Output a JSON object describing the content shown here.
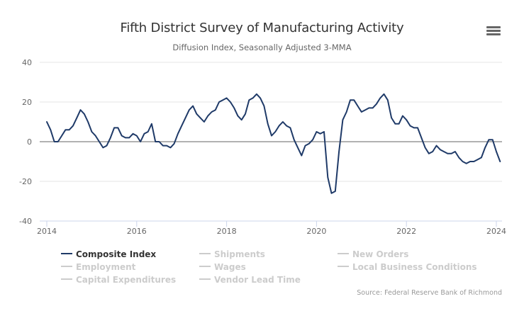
{
  "chart_data": {
    "type": "line",
    "title": "Fifth District Survey of Manufacturing Activity",
    "subtitle": "Diffusion Index, Seasonally Adjusted 3-MMA",
    "xlabel": "",
    "ylabel": "",
    "ylim": [
      -40,
      40
    ],
    "yticks": [
      "40",
      "20",
      "0",
      "-20",
      "-40"
    ],
    "ytick_values": [
      40,
      20,
      0,
      -20,
      -40
    ],
    "xlim": [
      2014.0,
      2024.0
    ],
    "xticks": [
      "2014",
      "2016",
      "2018",
      "2020",
      "2022",
      "2024"
    ],
    "xtick_values": [
      2014,
      2016,
      2018,
      2020,
      2022,
      2024
    ],
    "grid": true,
    "legend_position": "bottom",
    "x_start": "2014-01",
    "x_step": "month",
    "series": [
      {
        "name": "Composite Index",
        "color": "#1f3a68",
        "visible": true,
        "values": [
          10,
          6,
          0,
          0,
          3,
          6,
          6,
          8,
          12,
          16,
          14,
          10,
          5,
          3,
          0,
          -3,
          -2,
          2,
          7,
          7,
          3,
          2,
          2,
          4,
          3,
          0,
          4,
          5,
          9,
          0,
          0,
          -2,
          -2,
          -3,
          -1,
          4,
          8,
          12,
          16,
          18,
          14,
          12,
          10,
          13,
          15,
          16,
          20,
          21,
          22,
          20,
          17,
          13,
          11,
          14,
          21,
          22,
          24,
          22,
          18,
          9,
          3,
          5,
          8,
          10,
          8,
          7,
          1,
          -3,
          -7,
          -2,
          -1,
          1,
          5,
          4,
          5,
          -18,
          -26,
          -25,
          -5,
          11,
          15,
          21,
          21,
          18,
          15,
          16,
          17,
          17,
          19,
          22,
          24,
          21,
          12,
          9,
          9,
          13,
          11,
          8,
          7,
          7,
          2,
          -3,
          -6,
          -5,
          -2,
          -4,
          -5,
          -6,
          -6,
          -5,
          -8,
          -10,
          -11,
          -10,
          -10,
          -9,
          -8,
          -3,
          1,
          1,
          -5,
          -10
        ]
      },
      {
        "name": "Shipments",
        "color": "#cccccc",
        "visible": false,
        "values": []
      },
      {
        "name": "New Orders",
        "color": "#cccccc",
        "visible": false,
        "values": []
      },
      {
        "name": "Employment",
        "color": "#cccccc",
        "visible": false,
        "values": []
      },
      {
        "name": "Wages",
        "color": "#cccccc",
        "visible": false,
        "values": []
      },
      {
        "name": "Local Business Conditions",
        "color": "#cccccc",
        "visible": false,
        "values": []
      },
      {
        "name": "Capital Expenditures",
        "color": "#cccccc",
        "visible": false,
        "values": []
      },
      {
        "name": "Vendor Lead Time",
        "color": "#cccccc",
        "visible": false,
        "values": []
      }
    ],
    "source": "Source: Federal Reserve Bank of Richmond"
  },
  "menu": {
    "icon": "hamburger-menu-icon"
  },
  "colors": {
    "line": "#1f3a68",
    "zero_line": "#666666",
    "grid": "#e6e6e6",
    "inactive": "#cccccc"
  }
}
